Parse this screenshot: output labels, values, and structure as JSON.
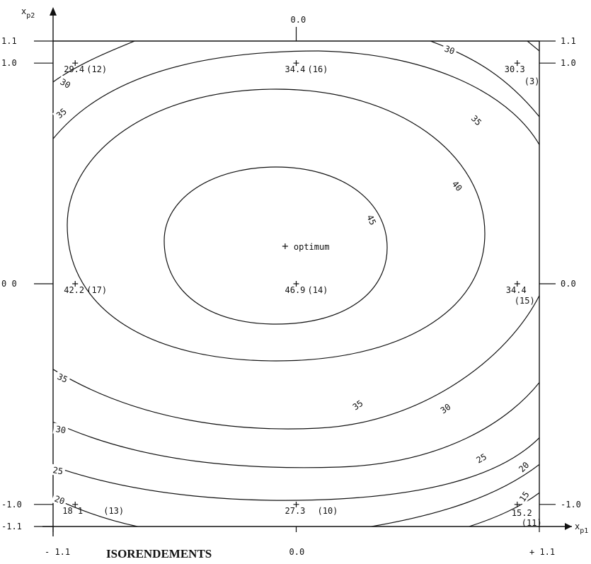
{
  "chart_data": {
    "type": "contour",
    "title": "ISORENDEMENTS",
    "xlabel": "x",
    "xlabel_sub": "p1",
    "ylabel": "x",
    "ylabel_sub": "p2",
    "xlim": [
      -1.1,
      1.1
    ],
    "ylim": [
      -1.1,
      1.1
    ],
    "x_ticks_bottom": [
      {
        "value": -1.1,
        "label": "- 1.1"
      },
      {
        "value": 0.0,
        "label": "0.0"
      },
      {
        "value": 1.1,
        "label": "+ 1.1"
      }
    ],
    "x_tick_top": {
      "value": 0.0,
      "label": "0.0"
    },
    "y_ticks_left": [
      {
        "value": 1.1,
        "label": "1.1"
      },
      {
        "value": 1.0,
        "label": "1.0"
      },
      {
        "value": 0.0,
        "label": "0 0"
      },
      {
        "value": -1.0,
        "label": "-1.0"
      },
      {
        "value": -1.1,
        "label": "-1.1"
      }
    ],
    "y_ticks_right": [
      {
        "value": 1.1,
        "label": "1.1"
      },
      {
        "value": 1.0,
        "label": "1.0"
      },
      {
        "value": 0.0,
        "label": "0.0"
      },
      {
        "value": -1.0,
        "label": "-1.0"
      }
    ],
    "contour_levels": [
      15,
      20,
      25,
      30,
      35,
      40,
      45
    ],
    "optimum": {
      "x": -0.05,
      "y": 0.17,
      "label": "optimum"
    },
    "points": [
      {
        "x": -1.0,
        "y": 1.0,
        "value": "29.4",
        "run": "(12)"
      },
      {
        "x": 0.0,
        "y": 1.0,
        "value": "34.4",
        "run": "(16)"
      },
      {
        "x": 1.0,
        "y": 1.0,
        "value": "30.3",
        "run": "(3)"
      },
      {
        "x": -1.0,
        "y": 0.0,
        "value": "42.2",
        "run": "(17)"
      },
      {
        "x": 0.0,
        "y": 0.0,
        "value": "46.9",
        "run": "(14)"
      },
      {
        "x": 1.0,
        "y": 0.0,
        "value": "34.4",
        "run": "(15)"
      },
      {
        "x": -1.0,
        "y": -1.0,
        "value": "18 1",
        "run": "(13)"
      },
      {
        "x": 0.0,
        "y": -1.0,
        "value": "27.3",
        "run": "(10)"
      },
      {
        "x": 1.0,
        "y": -1.0,
        "value": "15.2",
        "run": "(11)"
      }
    ],
    "contour_labels": [
      "30",
      "30",
      "35",
      "35",
      "35",
      "40",
      "45",
      "35",
      "30",
      "30",
      "25",
      "25",
      "20",
      "20",
      "15"
    ],
    "grid": false
  }
}
